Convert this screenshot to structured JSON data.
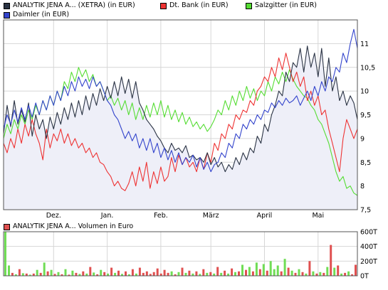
{
  "legend": {
    "analytik": "ANALYTIK JENA A... (XETRA) (in EUR)",
    "dtbank": "Dt. Bank (in EUR)",
    "salzgitter": "Salzgitter (in EUR)",
    "daimler": "Daimler (in EUR)",
    "volume": "ANALYTIK JENA A... Volumen in Euro"
  },
  "colors": {
    "analytik": "#2a3344",
    "dtbank": "#ee3333",
    "salzgitter": "#55dd33",
    "daimler": "#3344cc",
    "fill": "#eeeff8",
    "grid": "#d6d6d6",
    "volume_red": "#e05050",
    "volume_green": "#70dd55"
  },
  "chart_data": [
    {
      "type": "line",
      "title": "",
      "x_ticks": [
        "Dez.",
        "Jan.",
        "Feb.",
        "März",
        "April",
        "Mai"
      ],
      "y_ticks": [
        "7,5",
        "8",
        "8,5",
        "9",
        "9,5",
        "10",
        "10,5",
        "11"
      ],
      "ylim": [
        7.5,
        11.5
      ],
      "grid": true,
      "legend_position": "top",
      "x_tick_positions": [
        14,
        29,
        44,
        58,
        73,
        88
      ],
      "n_points": 100,
      "series": [
        {
          "name": "ANALYTIK JENA A... (XETRA) (in EUR)",
          "values": [
            9.1,
            9.7,
            9.25,
            9.8,
            9.3,
            9.6,
            9.35,
            9.75,
            9.05,
            9.5,
            9.2,
            9.4,
            9.0,
            9.45,
            9.2,
            9.55,
            9.3,
            9.65,
            9.4,
            9.75,
            9.45,
            9.8,
            9.5,
            9.9,
            9.6,
            9.95,
            9.7,
            10.05,
            9.8,
            10.1,
            9.85,
            10.2,
            9.9,
            10.3,
            9.95,
            10.25,
            9.85,
            10.2,
            9.75,
            9.6,
            9.4,
            9.3,
            9.2,
            9.05,
            8.95,
            8.8,
            8.7,
            8.9,
            8.75,
            8.8,
            8.7,
            8.85,
            8.6,
            8.65,
            8.55,
            8.6,
            8.5,
            8.7,
            8.45,
            8.6,
            8.4,
            8.5,
            8.3,
            8.45,
            8.35,
            8.6,
            8.45,
            8.7,
            8.55,
            8.8,
            8.7,
            9.05,
            8.9,
            9.3,
            9.15,
            9.5,
            9.7,
            10.0,
            9.9,
            10.4,
            10.2,
            10.6,
            10.5,
            10.9,
            10.4,
            10.95,
            10.5,
            10.8,
            10.3,
            10.9,
            10.1,
            10.7,
            10.0,
            10.3,
            9.8,
            10.0,
            9.7,
            9.9,
            9.75,
            9.4
          ]
        },
        {
          "name": "Dt. Bank (in EUR)",
          "values": [
            8.9,
            8.7,
            9.0,
            8.8,
            9.2,
            8.9,
            9.3,
            9.05,
            9.4,
            9.1,
            8.9,
            8.55,
            9.2,
            8.8,
            9.1,
            8.95,
            9.2,
            8.9,
            9.1,
            8.85,
            9.0,
            8.8,
            8.9,
            8.7,
            8.8,
            8.6,
            8.7,
            8.5,
            8.45,
            8.3,
            8.2,
            8.0,
            8.1,
            7.95,
            7.9,
            8.05,
            8.3,
            8.0,
            8.4,
            8.1,
            8.5,
            7.95,
            8.3,
            8.05,
            8.4,
            8.1,
            8.2,
            8.6,
            8.3,
            8.65,
            8.45,
            8.6,
            8.4,
            8.5,
            8.3,
            8.6,
            8.35,
            8.7,
            8.5,
            8.9,
            8.75,
            9.1,
            9.0,
            9.3,
            9.2,
            9.5,
            9.4,
            9.6,
            9.55,
            9.8,
            9.7,
            10.0,
            10.1,
            10.3,
            10.2,
            10.5,
            10.3,
            10.7,
            10.45,
            10.8,
            10.5,
            10.2,
            10.4,
            10.1,
            10.3,
            9.8,
            10.0,
            9.7,
            9.9,
            9.5,
            9.6,
            9.2,
            8.9,
            8.6,
            8.3,
            9.0,
            9.4,
            9.2,
            9.0,
            9.2
          ]
        },
        {
          "name": "Salzgitter (in EUR)",
          "values": [
            9.0,
            9.3,
            9.1,
            9.4,
            9.2,
            9.5,
            9.3,
            9.6,
            9.4,
            9.7,
            9.5,
            9.8,
            9.6,
            9.9,
            9.7,
            10.0,
            9.8,
            10.2,
            10.05,
            10.4,
            10.2,
            10.5,
            10.3,
            10.45,
            10.2,
            10.35,
            10.1,
            10.2,
            10.0,
            9.8,
            9.9,
            9.7,
            9.85,
            9.6,
            9.8,
            9.5,
            9.75,
            9.4,
            9.65,
            9.4,
            9.7,
            9.45,
            9.75,
            9.5,
            9.8,
            9.45,
            9.7,
            9.4,
            9.6,
            9.35,
            9.55,
            9.3,
            9.45,
            9.25,
            9.35,
            9.2,
            9.3,
            9.15,
            9.25,
            9.4,
            9.6,
            9.5,
            9.8,
            9.6,
            9.9,
            9.7,
            10.0,
            9.8,
            10.1,
            9.85,
            10.05,
            9.8,
            10.0,
            9.9,
            10.2,
            10.0,
            10.3,
            10.15,
            10.4,
            10.2,
            10.45,
            10.25,
            10.1,
            10.0,
            9.9,
            9.85,
            9.7,
            9.6,
            9.4,
            9.3,
            9.1,
            8.9,
            8.6,
            8.3,
            8.1,
            8.2,
            7.95,
            8.0,
            7.85,
            7.8
          ]
        },
        {
          "name": "Daimler (in EUR)",
          "values": [
            9.2,
            9.5,
            9.3,
            9.6,
            9.35,
            9.65,
            9.4,
            9.7,
            9.45,
            9.75,
            9.5,
            9.8,
            9.6,
            9.9,
            9.7,
            10.0,
            9.8,
            10.1,
            9.9,
            10.2,
            10.0,
            10.3,
            10.1,
            10.25,
            10.05,
            10.3,
            10.1,
            10.2,
            10.0,
            9.8,
            9.7,
            9.5,
            9.4,
            9.2,
            9.0,
            9.15,
            8.95,
            9.1,
            8.8,
            9.0,
            8.75,
            9.0,
            8.7,
            8.9,
            8.6,
            8.8,
            8.55,
            8.75,
            8.5,
            8.7,
            8.45,
            8.6,
            8.5,
            8.65,
            8.4,
            8.6,
            8.35,
            8.5,
            8.3,
            8.45,
            8.5,
            8.7,
            8.6,
            8.9,
            8.8,
            9.1,
            9.0,
            9.3,
            9.2,
            9.4,
            9.3,
            9.5,
            9.4,
            9.6,
            9.55,
            9.75,
            9.65,
            9.8,
            9.7,
            9.85,
            9.75,
            9.8,
            9.9,
            9.7,
            9.85,
            10.0,
            9.8,
            10.1,
            9.9,
            10.2,
            10.0,
            10.3,
            10.2,
            10.5,
            10.4,
            10.8,
            10.6,
            11.0,
            11.3,
            10.9
          ]
        }
      ]
    },
    {
      "type": "bar",
      "title": "",
      "y_ticks": [
        "0T",
        "200T",
        "400T",
        "600T"
      ],
      "ylim": [
        0,
        600
      ],
      "grid": true,
      "legend_position": "top",
      "values": [
        600,
        140,
        40,
        20,
        90,
        35,
        30,
        15,
        30,
        80,
        40,
        180,
        60,
        80,
        25,
        50,
        20,
        90,
        15,
        70,
        40,
        25,
        60,
        30,
        120,
        45,
        20,
        80,
        50,
        30,
        110,
        40,
        70,
        25,
        60,
        20,
        90,
        30,
        110,
        40,
        60,
        25,
        50,
        100,
        30,
        80,
        40,
        60,
        20,
        50,
        110,
        40,
        70,
        30,
        60,
        25,
        90,
        40,
        50,
        30,
        120,
        40,
        70,
        30,
        100,
        50,
        60,
        150,
        80,
        120,
        60,
        180,
        90,
        160,
        70,
        200,
        90,
        140,
        60,
        230,
        110,
        70,
        40,
        90,
        50,
        30,
        200,
        60,
        30,
        50,
        40,
        120,
        420,
        110,
        140,
        30,
        40,
        60,
        20,
        150
      ]
    }
  ]
}
